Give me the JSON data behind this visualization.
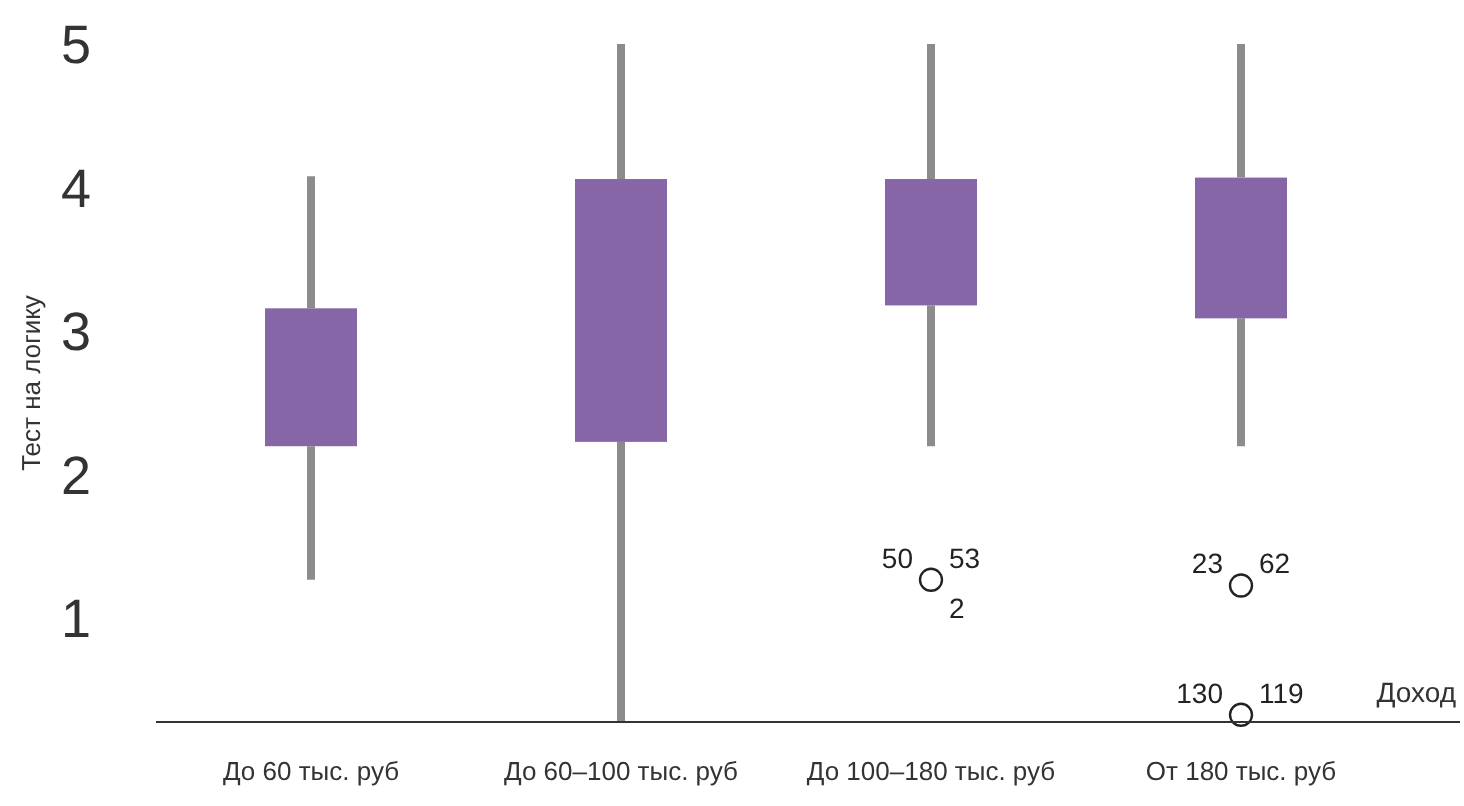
{
  "chart_data": {
    "type": "box",
    "xlabel": "Доход",
    "ylabel": "Тест на логику",
    "categories": [
      "До 60 тыс. руб",
      "До 60–100 тыс. руб",
      "До 100–180 тыс. руб",
      "От 180 тыс. руб"
    ],
    "color": "#8766a8",
    "boxes": [
      {
        "low": 1.27,
        "q1": 2.2,
        "q3": 3.16,
        "high": 4.08
      },
      {
        "low": 0.28,
        "q1": 2.23,
        "q3": 4.06,
        "high": 5
      },
      {
        "low": 2.2,
        "q1": 3.18,
        "q3": 4.06,
        "high": 5
      },
      {
        "low": 2.2,
        "q1": 3.09,
        "q3": 4.07,
        "high": 5
      }
    ],
    "series": [
      {
        "type": "scatter",
        "color": "#ffffff",
        "x": [
          "До 100–180 тыс. руб",
          "От 180 тыс. руб",
          "От 180 тыс. руб"
        ],
        "values": [
          1.27,
          1.23,
          0.33
        ]
      }
    ],
    "marker": "circle",
    "ylim": [
      0.28,
      5
    ],
    "yticks": [
      1,
      2,
      3,
      4,
      5
    ],
    "annotations": [
      {
        "text": "50",
        "x": "До 100–180 тыс. руб",
        "y": 1.27
      },
      {
        "text": "53",
        "x": "До 100–180 тыс. руб",
        "y": 1.27
      },
      {
        "text": "2",
        "x": "До 100–180 тыс. руб",
        "y": 1.27
      },
      {
        "text": "23",
        "x": "От 180 тыс. руб",
        "y": 1.23
      },
      {
        "text": "62",
        "x": "От 180 тыс. руб",
        "y": 1.23
      },
      {
        "text": "130",
        "x": "От 180 тыс. руб",
        "y": 0.33
      },
      {
        "text": "119",
        "x": "От 180 тыс. руб",
        "y": 0.33
      }
    ]
  }
}
